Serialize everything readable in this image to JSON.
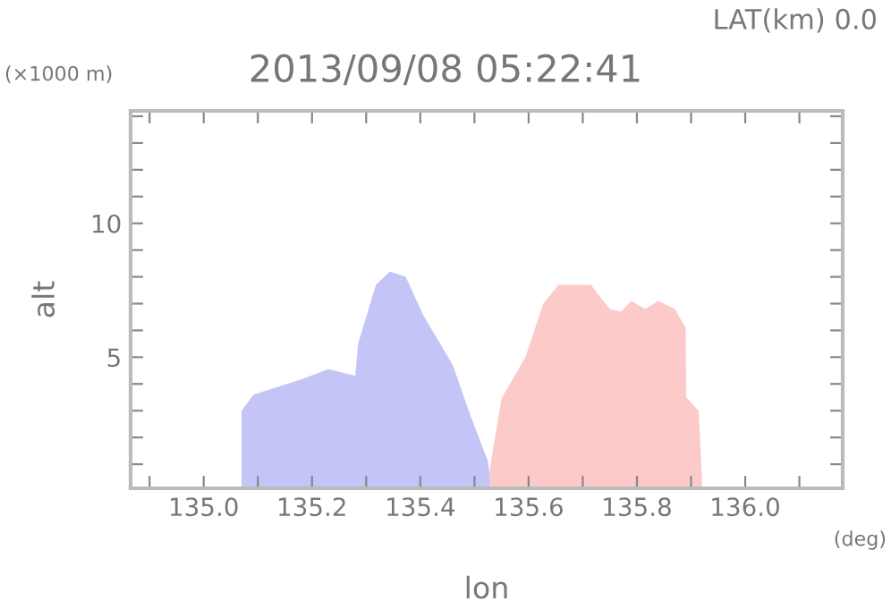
{
  "chart_data": {
    "type": "area",
    "title": "2013/09/08 05:22:41",
    "subtitle": "LAT(km) 0.0",
    "xlabel": "lon",
    "ylabel": "alt",
    "annotations": [
      "(×1000 m)",
      "(deg)"
    ],
    "series": [
      {
        "color": "#c4c4f6",
        "x": [
          135.07,
          135.092,
          135.185,
          135.23,
          135.28,
          135.285,
          135.318,
          135.344,
          135.373,
          135.406,
          135.46,
          135.493,
          135.525,
          135.53
        ],
        "values": [
          3.0,
          3.6,
          4.2,
          4.55,
          4.3,
          5.5,
          7.7,
          8.2,
          8.0,
          6.55,
          4.7,
          2.8,
          1.1,
          0.3
        ]
      },
      {
        "color": "#fdcaca",
        "x": [
          135.528,
          135.55,
          135.594,
          135.627,
          135.655,
          135.715,
          135.73,
          135.75,
          135.77,
          135.79,
          135.815,
          135.84,
          135.87,
          135.89,
          135.891,
          135.914,
          135.92
        ],
        "values": [
          0.8,
          3.45,
          5.0,
          7.0,
          7.7,
          7.7,
          7.3,
          6.8,
          6.7,
          7.1,
          6.8,
          7.1,
          6.8,
          6.1,
          3.5,
          3.0,
          0.55
        ]
      }
    ],
    "xlim": [
      134.865,
      136.18
    ],
    "ylim": [
      0.1,
      14.2
    ],
    "xticks": [
      {
        "value": 134.9,
        "label": null
      },
      {
        "value": 135.0,
        "label": "135.0"
      },
      {
        "value": 135.1,
        "label": null
      },
      135.2,
      {
        "value": 135.3,
        "label": null
      },
      135.4,
      {
        "value": 135.5,
        "label": null
      },
      135.6,
      {
        "value": 135.7,
        "label": null
      },
      135.8,
      {
        "value": 135.9,
        "label": null
      },
      {
        "value": 136.0,
        "label": "136.0"
      },
      {
        "value": 136.1,
        "label": null
      }
    ],
    "yticks": [
      {
        "value": 1,
        "label": null
      },
      {
        "value": 2,
        "label": null
      },
      {
        "value": 3,
        "label": null
      },
      {
        "value": 4,
        "label": null
      },
      5,
      {
        "value": 6,
        "label": null
      },
      {
        "value": 7,
        "label": null
      },
      {
        "value": 8,
        "label": null
      },
      {
        "value": 9,
        "label": null
      },
      10,
      {
        "value": 11,
        "label": null
      },
      {
        "value": 12,
        "label": null
      },
      {
        "value": 13,
        "label": null
      },
      {
        "value": 14,
        "label": null
      }
    ],
    "grid": false,
    "legend": false
  }
}
